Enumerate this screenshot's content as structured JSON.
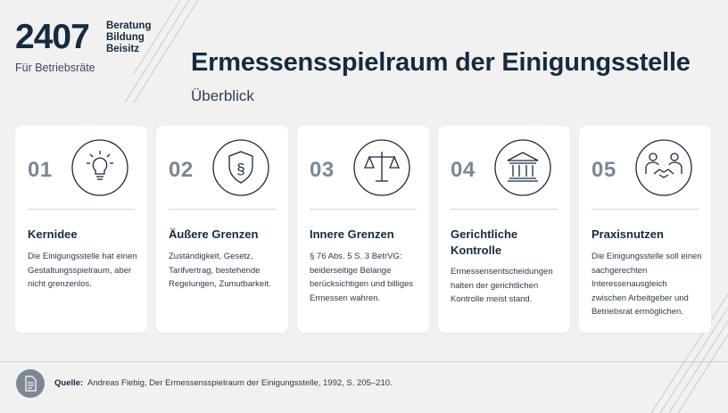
{
  "brand": {
    "number": "2407",
    "lines": [
      "Beratung",
      "Bildung",
      "Beisitz"
    ],
    "tagline": "Für Betriebsräte"
  },
  "header": {
    "title": "Ermessensspielraum der Einigungsstelle",
    "subtitle": "Überblick"
  },
  "cards": [
    {
      "number": "01",
      "icon": "lightbulb-icon",
      "title": "Kernidee",
      "text": "Die Einigungsstelle hat einen Gestaltungsspielraum, aber nicht grenzenlos."
    },
    {
      "number": "02",
      "icon": "paragraph-shield-icon",
      "title": "Äußere Grenzen",
      "text": "Zuständigkeit, Gesetz, Tarifvertrag, bestehende Regelungen, Zumutbarkeit."
    },
    {
      "number": "03",
      "icon": "scales-icon",
      "title": "Innere Grenzen",
      "text": "§ 76 Abs. 5 S. 3 BetrVG: beiderseitige Belange berücksichtigen und billiges Ermessen wahren."
    },
    {
      "number": "04",
      "icon": "courthouse-icon",
      "title": "Gerichtliche Kontrolle",
      "text": "Ermessensentscheidungen halten der gerichtlichen Kontrolle meist stand."
    },
    {
      "number": "05",
      "icon": "handshake-icon",
      "title": "Praxisnutzen",
      "text": "Die Einigungsstelle soll einen sachgerechten Interessenausgleich zwischen Arbeitgeber und Betriebsrat ermöglichen."
    }
  ],
  "footer": {
    "label": "Quelle:",
    "source": "Andreas Fiebig, Der Ermessensspielraum der Einigungsstelle, 1992, S. 205–210.",
    "icon": "document-icon"
  },
  "colors": {
    "background": "#f1f1f2",
    "navy": "#172a3e",
    "muted": "#7a8796",
    "card": "#ffffff"
  }
}
